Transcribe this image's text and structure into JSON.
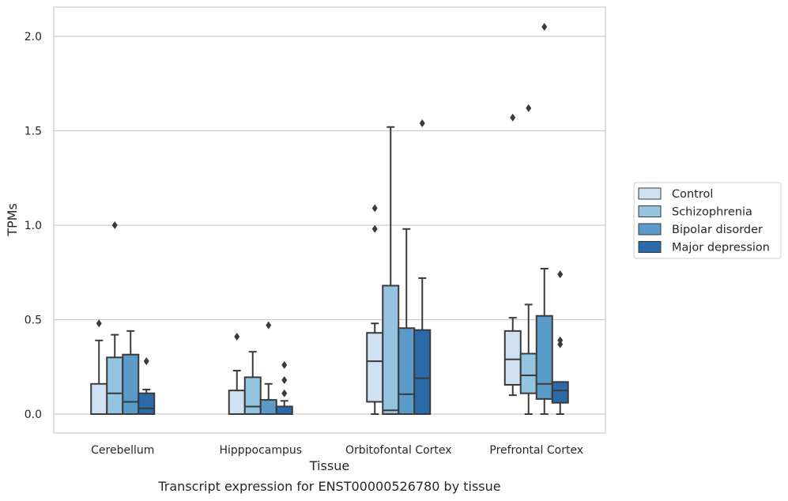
{
  "caption": "Transcript expression for ENST00000526780 by tissue",
  "chart_data": {
    "type": "box",
    "xlabel": "Tissue",
    "ylabel": "TPMs",
    "ylim": [
      -0.1,
      2.15
    ],
    "yticks": [
      0.0,
      0.5,
      1.0,
      1.5,
      2.0
    ],
    "ytick_labels": [
      "0.0",
      "0.5",
      "1.0",
      "1.5",
      "2.0"
    ],
    "grid": "horizontal",
    "legend_position": "right",
    "categories": [
      "Cerebellum",
      "Hipppocampus",
      "Orbitofontal Cortex",
      "Prefrontal Cortex"
    ],
    "series": [
      {
        "name": "Control",
        "color": "#d0e1f2",
        "boxes": [
          {
            "whislo": 0.0,
            "q1": 0.0,
            "med": 0.0,
            "q3": 0.16,
            "whishi": 0.39,
            "fliers": [
              0.48
            ]
          },
          {
            "whislo": 0.0,
            "q1": 0.0,
            "med": 0.0,
            "q3": 0.125,
            "whishi": 0.23,
            "fliers": [
              0.41
            ]
          },
          {
            "whislo": 0.0,
            "q1": 0.065,
            "med": 0.28,
            "q3": 0.43,
            "whishi": 0.48,
            "fliers": [
              0.98,
              1.09
            ]
          },
          {
            "whislo": 0.1,
            "q1": 0.155,
            "med": 0.29,
            "q3": 0.44,
            "whishi": 0.51,
            "fliers": [
              1.57
            ]
          }
        ]
      },
      {
        "name": "Schizophrenia",
        "color": "#94c4df",
        "boxes": [
          {
            "whislo": 0.0,
            "q1": 0.0,
            "med": 0.11,
            "q3": 0.3,
            "whishi": 0.42,
            "fliers": [
              1.0
            ]
          },
          {
            "whislo": 0.0,
            "q1": 0.0,
            "med": 0.04,
            "q3": 0.195,
            "whishi": 0.33,
            "fliers": []
          },
          {
            "whislo": 0.0,
            "q1": 0.0,
            "med": 0.02,
            "q3": 0.68,
            "whishi": 1.52,
            "fliers": []
          },
          {
            "whislo": 0.0,
            "q1": 0.11,
            "med": 0.205,
            "q3": 0.32,
            "whishi": 0.58,
            "fliers": [
              1.62
            ]
          }
        ]
      },
      {
        "name": "Bipolar disorder",
        "color": "#5a9bc9",
        "boxes": [
          {
            "whislo": 0.0,
            "q1": 0.0,
            "med": 0.065,
            "q3": 0.315,
            "whishi": 0.44,
            "fliers": []
          },
          {
            "whislo": 0.0,
            "q1": 0.0,
            "med": 0.0,
            "q3": 0.075,
            "whishi": 0.16,
            "fliers": [
              0.47
            ]
          },
          {
            "whislo": 0.0,
            "q1": 0.0,
            "med": 0.105,
            "q3": 0.455,
            "whishi": 0.98,
            "fliers": []
          },
          {
            "whislo": 0.0,
            "q1": 0.08,
            "med": 0.16,
            "q3": 0.52,
            "whishi": 0.77,
            "fliers": [
              2.05
            ]
          }
        ]
      },
      {
        "name": "Major depression",
        "color": "#2b6aa8",
        "boxes": [
          {
            "whislo": 0.0,
            "q1": 0.0,
            "med": 0.03,
            "q3": 0.11,
            "whishi": 0.13,
            "fliers": [
              0.28
            ]
          },
          {
            "whislo": 0.0,
            "q1": 0.0,
            "med": 0.0,
            "q3": 0.04,
            "whishi": 0.07,
            "fliers": [
              0.11,
              0.18,
              0.26
            ]
          },
          {
            "whislo": 0.0,
            "q1": 0.0,
            "med": 0.19,
            "q3": 0.445,
            "whishi": 0.72,
            "fliers": [
              1.54
            ]
          },
          {
            "whislo": 0.0,
            "q1": 0.06,
            "med": 0.125,
            "q3": 0.17,
            "whishi": 0.17,
            "fliers": [
              0.37,
              0.39,
              0.74
            ]
          }
        ]
      }
    ]
  }
}
